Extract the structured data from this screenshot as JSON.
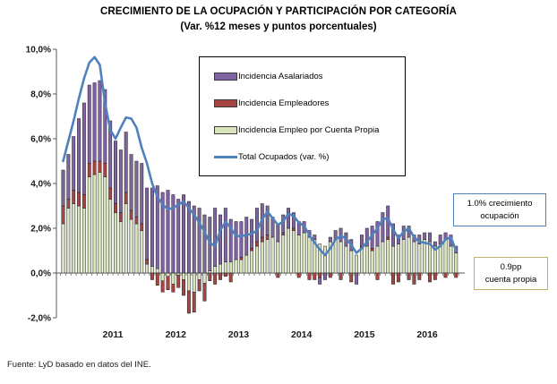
{
  "header": {
    "title": "CRECIMIENTO DE LA OCUPACIÓN Y PARTICIPACIÓN POR CATEGORÍA",
    "subtitle": "(Var. %12 meses  y puntos porcentuales)"
  },
  "annotations": {
    "growth": {
      "text": "1.0% crecimiento\nocupación",
      "border_color": "#4F81BD"
    },
    "cuenta_propia": {
      "text": "0.9pp\ncuenta propia",
      "border_color": "#BDB269"
    }
  },
  "footer": {
    "source": "Fuente: LyD basado en datos del INE."
  },
  "colors": {
    "asalariados": "#8064A2",
    "empleadores": "#A64542",
    "cuenta_propia": "#D8E4BC",
    "total_line": "#4F81BD",
    "axis": "#595959",
    "tick_label": "#1a1a1a"
  },
  "chart_data": {
    "type": "bar",
    "subtype": "stacked monthly incidence bars with total line overlay",
    "title": "CRECIMIENTO DE LA OCUPACIÓN Y PARTICIPACIÓN POR CATEGORÍA",
    "subtitle": "(Var. %12 meses  y puntos porcentuales)",
    "ylim": [
      -2.0,
      10.0
    ],
    "grid": false,
    "legend_position": "inside-top-center",
    "y_axis": {
      "tick_labels": [
        "10,0%",
        "8,0%",
        "6,0%",
        "4,0%",
        "2,0%",
        "0,0%",
        "-2,0%"
      ],
      "tick_values": [
        10,
        8,
        6,
        4,
        2,
        0,
        -2
      ]
    },
    "x_axis": {
      "tick_labels": [
        "2011",
        "2012",
        "2013",
        "2014",
        "2015",
        "2016"
      ],
      "unit": "monthly bars (12 per labeled year, series starts late 2010)",
      "year_start_indices": [
        4,
        16,
        28,
        40,
        52,
        64
      ]
    },
    "series": [
      {
        "name": "Incidencia Asalariados",
        "type": "bar",
        "color": "#8064A2",
        "values": [
          1.6,
          2.0,
          2.4,
          3.3,
          4.1,
          3.5,
          3.5,
          3.6,
          3.3,
          3.0,
          2.8,
          2.8,
          2.7,
          2.5,
          2.5,
          2.7,
          3.2,
          3.5,
          3.7,
          3.6,
          3.7,
          3.5,
          3.3,
          3.5,
          3.2,
          3.0,
          2.9,
          2.6,
          2.4,
          2.6,
          2.2,
          2.4,
          1.9,
          1.7,
          1.6,
          1.7,
          1.3,
          1.5,
          1.5,
          1.3,
          0.9,
          0.8,
          0.8,
          0.9,
          0.7,
          0.6,
          0.5,
          0.3,
          0.2,
          -0.3,
          -0.3,
          0.2,
          0.4,
          0.6,
          0.6,
          0.5,
          -0.5,
          0.5,
          0.8,
          1.0,
          1.1,
          1.3,
          1.4,
          1.0,
          0.4,
          0.6,
          0.5,
          0.3,
          0.4,
          0.3,
          0.4,
          0.2,
          0.4,
          0.3,
          0.5,
          0.3
        ]
      },
      {
        "name": "Incidencia Empleadores",
        "type": "bar",
        "color": "#A64542",
        "values": [
          0.8,
          0.4,
          0.6,
          0.6,
          0.6,
          0.6,
          0.6,
          0.5,
          0.6,
          0.5,
          0.4,
          0.4,
          0.5,
          0.4,
          0.3,
          0.3,
          0.2,
          -0.3,
          -0.55,
          -0.5,
          -0.6,
          -0.35,
          -0.55,
          -0.7,
          -1.0,
          -0.9,
          -0.5,
          -0.8,
          -0.35,
          -0.5,
          -0.3,
          -0.15,
          -0.4,
          0.0,
          0.1,
          0.0,
          0.1,
          0.2,
          0.2,
          0.2,
          0.0,
          -0.2,
          0.1,
          0.0,
          0.1,
          -0.2,
          0.0,
          -0.3,
          -0.3,
          -0.2,
          0.0,
          -0.2,
          0.0,
          -0.3,
          0.0,
          -0.4,
          0.0,
          0.1,
          0.0,
          0.1,
          -0.3,
          0.0,
          0.1,
          -0.5,
          -0.4,
          0.0,
          -0.3,
          -0.5,
          -0.3,
          0.0,
          -0.4,
          -0.3,
          0.0,
          -0.2,
          0.0,
          -0.2
        ]
      },
      {
        "name": "Incidencia Empleo por Cuenta Propia",
        "type": "bar",
        "color": "#D8E4BC",
        "values": [
          2.2,
          2.9,
          3.1,
          3.0,
          2.9,
          4.3,
          4.4,
          4.5,
          4.3,
          3.3,
          2.7,
          2.3,
          3.1,
          2.4,
          2.2,
          1.9,
          0.4,
          0.3,
          0.2,
          -0.35,
          -0.15,
          -0.5,
          -0.1,
          -0.3,
          -0.8,
          -0.85,
          -0.3,
          -0.45,
          0.1,
          0.3,
          0.4,
          0.5,
          0.5,
          0.6,
          0.6,
          0.8,
          1.0,
          1.2,
          1.4,
          1.5,
          1.6,
          1.4,
          1.7,
          2.0,
          1.9,
          1.7,
          1.8,
          1.6,
          1.5,
          1.3,
          1.2,
          1.4,
          1.5,
          1.4,
          1.2,
          1.0,
          0.8,
          1.1,
          1.2,
          1.0,
          1.2,
          1.4,
          1.5,
          1.2,
          1.3,
          1.5,
          1.6,
          1.4,
          1.3,
          1.5,
          1.4,
          1.2,
          1.3,
          1.5,
          1.2,
          0.9
        ]
      },
      {
        "name": "Total Ocupados (var.  %)",
        "type": "line",
        "color": "#4F81BD",
        "values": [
          5.0,
          5.9,
          6.8,
          7.8,
          8.7,
          9.4,
          9.65,
          9.3,
          7.6,
          6.4,
          6.0,
          6.5,
          6.95,
          6.9,
          6.5,
          5.6,
          4.9,
          4.0,
          3.4,
          3.05,
          2.85,
          2.9,
          3.05,
          3.2,
          2.9,
          2.6,
          2.25,
          1.85,
          1.35,
          1.2,
          1.9,
          2.3,
          2.0,
          1.65,
          1.65,
          1.7,
          1.75,
          1.9,
          2.4,
          2.75,
          2.45,
          2.15,
          2.3,
          2.65,
          2.55,
          2.25,
          2.1,
          1.7,
          1.35,
          1.05,
          0.8,
          1.1,
          1.5,
          1.65,
          1.55,
          1.25,
          0.9,
          1.1,
          1.4,
          1.7,
          2.0,
          2.4,
          2.45,
          1.95,
          1.55,
          1.85,
          2.0,
          1.6,
          1.4,
          1.35,
          1.3,
          1.05,
          1.2,
          1.5,
          1.6,
          1.0
        ]
      }
    ]
  }
}
